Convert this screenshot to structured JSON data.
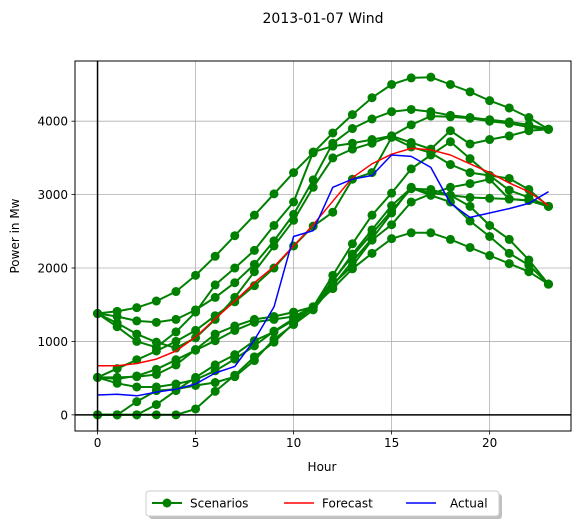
{
  "chart_data": {
    "type": "line",
    "title": "2013-01-07 Wind",
    "xlabel": "Hour",
    "ylabel": "Power in Mw",
    "xlim": [
      -1.15,
      24.15
    ],
    "ylim": [
      -220,
      4820
    ],
    "xticks": [
      0,
      5,
      10,
      15,
      20
    ],
    "yticks": [
      0,
      1000,
      2000,
      3000,
      4000
    ],
    "grid": true,
    "reference_lines": {
      "x": 0,
      "y": 0
    },
    "legend": {
      "placement": "bottom-center, below plot",
      "entries": [
        "Scenarios",
        "Forecast",
        "Actual"
      ]
    },
    "colors": {
      "scenarios": "#008000",
      "forecast": "#ff0000",
      "actual": "#0000ff"
    },
    "x": [
      0,
      1,
      2,
      3,
      4,
      5,
      6,
      7,
      8,
      9,
      10,
      11,
      12,
      13,
      14,
      15,
      16,
      17,
      18,
      19,
      20,
      21,
      22,
      23
    ],
    "series": [
      {
        "name": "Scenarios",
        "color": "#008000",
        "marker": "circle",
        "values": [
          1380,
          1410,
          1460,
          1550,
          1680,
          1900,
          2160,
          2440,
          2720,
          3010,
          3300,
          3570,
          3840,
          4090,
          4320,
          4500,
          4590,
          4600,
          4500,
          4400,
          4280,
          4180,
          4050,
          3890
        ]
      },
      {
        "name": "Scenarios",
        "color": "#008000",
        "marker": "circle",
        "values": [
          1380,
          1340,
          1280,
          1260,
          1300,
          1430,
          1600,
          1800,
          2050,
          2370,
          2730,
          3200,
          3700,
          3900,
          4030,
          4130,
          4160,
          4130,
          4080,
          4050,
          4020,
          3990,
          3950,
          3890
        ]
      },
      {
        "name": "Scenarios",
        "color": "#008000",
        "marker": "circle",
        "values": [
          1380,
          1250,
          1100,
          990,
          910,
          1050,
          1300,
          1600,
          1950,
          2300,
          2650,
          3100,
          3500,
          3620,
          3700,
          3800,
          3950,
          4070,
          4060,
          4040,
          4000,
          3970,
          3920,
          3890
        ]
      },
      {
        "name": "Scenarios",
        "color": "#008000",
        "marker": "circle",
        "values": [
          1380,
          1200,
          1000,
          920,
          1130,
          1400,
          1770,
          2000,
          2240,
          2580,
          2900,
          3580,
          3660,
          3700,
          3750,
          3800,
          3710,
          3620,
          3870,
          3690,
          3750,
          3800,
          3870,
          3890
        ]
      },
      {
        "name": "Scenarios",
        "color": "#008000",
        "marker": "circle",
        "values": [
          510,
          630,
          750,
          870,
          1000,
          1150,
          1350,
          1540,
          1760,
          2000,
          2300,
          2570,
          2760,
          3210,
          3300,
          3780,
          3650,
          3570,
          3410,
          3300,
          3260,
          3220,
          3070,
          2840
        ]
      },
      {
        "name": "Scenarios",
        "color": "#008000",
        "marker": "circle",
        "values": [
          510,
          490,
          530,
          620,
          750,
          880,
          1010,
          1150,
          1260,
          1300,
          1340,
          1470,
          1900,
          2330,
          2720,
          3020,
          3350,
          3540,
          3720,
          3490,
          3260,
          3060,
          2960,
          2840
        ]
      },
      {
        "name": "Scenarios",
        "color": "#008000",
        "marker": "circle",
        "values": [
          510,
          510,
          520,
          550,
          680,
          890,
          1100,
          1210,
          1300,
          1340,
          1400,
          1470,
          1830,
          2160,
          2470,
          2780,
          3080,
          3070,
          2990,
          2960,
          2950,
          2940,
          2920,
          2840
        ]
      },
      {
        "name": "Scenarios",
        "color": "#008000",
        "marker": "circle",
        "values": [
          0,
          0,
          0,
          140,
          330,
          510,
          680,
          820,
          1010,
          1130,
          1290,
          1460,
          1780,
          2030,
          2380,
          2590,
          2900,
          3010,
          3100,
          3150,
          3210,
          2940,
          2920,
          2840
        ]
      },
      {
        "name": "Scenarios",
        "color": "#008000",
        "marker": "circle",
        "values": [
          510,
          430,
          380,
          380,
          420,
          480,
          600,
          760,
          940,
          1140,
          1310,
          1470,
          1820,
          2190,
          2520,
          2850,
          3090,
          2990,
          2900,
          2640,
          2430,
          2200,
          2040,
          1780
        ]
      },
      {
        "name": "Scenarios",
        "color": "#008000",
        "marker": "circle",
        "values": [
          0,
          0,
          180,
          330,
          350,
          400,
          440,
          520,
          740,
          1030,
          1230,
          1430,
          1760,
          2090,
          2400,
          2750,
          3100,
          3020,
          2990,
          2840,
          2580,
          2390,
          2110,
          1780
        ]
      },
      {
        "name": "Scenarios",
        "color": "#008000",
        "marker": "circle",
        "values": [
          0,
          0,
          0,
          0,
          0,
          80,
          320,
          540,
          790,
          990,
          1250,
          1470,
          1720,
          1990,
          2200,
          2400,
          2480,
          2480,
          2390,
          2280,
          2170,
          2060,
          1950,
          1780
        ]
      },
      {
        "name": "Forecast",
        "color": "#ff0000",
        "values": [
          670,
          670,
          700,
          760,
          870,
          1060,
          1310,
          1550,
          1800,
          2020,
          2300,
          2590,
          2910,
          3230,
          3420,
          3550,
          3630,
          3610,
          3540,
          3420,
          3300,
          3160,
          3040,
          2850
        ]
      },
      {
        "name": "Actual",
        "color": "#0000ff",
        "values": [
          270,
          280,
          260,
          310,
          350,
          420,
          570,
          660,
          1020,
          1470,
          2430,
          2510,
          3100,
          3210,
          3260,
          3540,
          3520,
          3370,
          2880,
          2690,
          2750,
          2810,
          2880,
          3040
        ]
      }
    ]
  }
}
